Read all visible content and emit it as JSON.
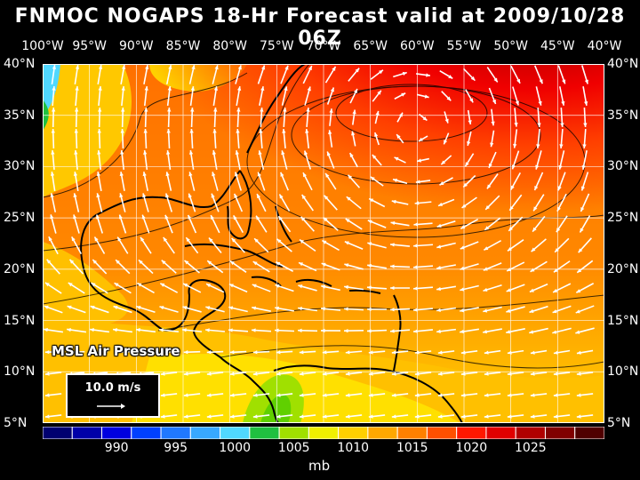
{
  "title": "FNMOC NOGAPS 18-Hr Forecast valid at 2009/10/28 06Z",
  "lon_labels": [
    "100°W",
    "95°W",
    "90°W",
    "85°W",
    "80°W",
    "75°W",
    "70°W",
    "65°W",
    "60°W",
    "55°W",
    "50°W",
    "45°W",
    "40°W"
  ],
  "lat_labels": [
    "40°N",
    "35°N",
    "30°N",
    "25°N",
    "20°N",
    "15°N",
    "10°N",
    "5°N"
  ],
  "field_label": "MSL Air Pressure",
  "reference_vector": "10.0 m/s",
  "colorbar": {
    "labels": [
      "990",
      "995",
      "1000",
      "1005",
      "1010",
      "1015",
      "1020",
      "1025"
    ],
    "units": "mb",
    "colors": [
      "#000070",
      "#0000a8",
      "#0000e0",
      "#0040ff",
      "#2078ff",
      "#38a8ff",
      "#50d8ff",
      "#20c040",
      "#a0e000",
      "#f0f000",
      "#ffd000",
      "#ffa800",
      "#ff8000",
      "#ff5000",
      "#ff1800",
      "#e00000",
      "#b00000",
      "#800000",
      "#500000"
    ]
  },
  "map": {
    "lon_range": [
      -100,
      -40
    ],
    "lat_range": [
      5,
      40
    ],
    "high_pressure_center": {
      "lon": -59,
      "lat": 37
    },
    "low_pressure_center": {
      "lon": -99,
      "lat": 37
    }
  }
}
